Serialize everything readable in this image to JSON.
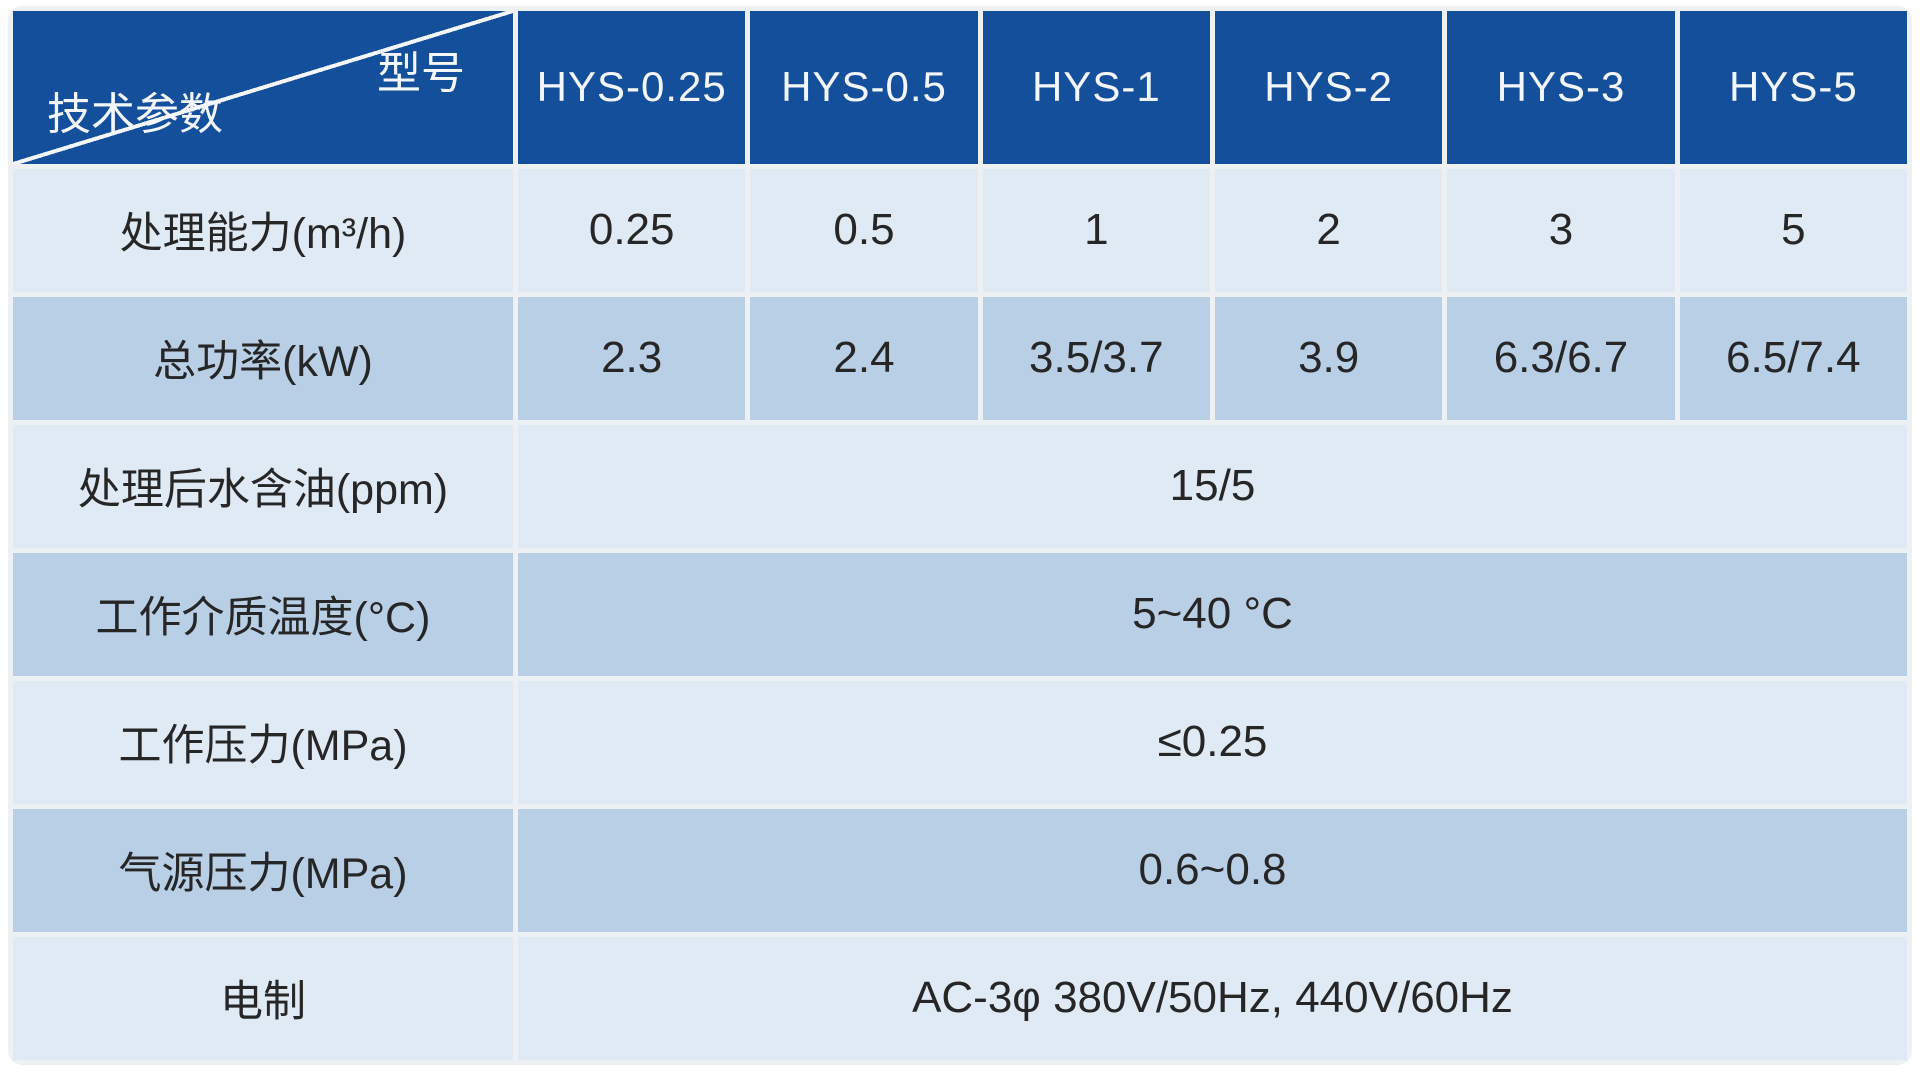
{
  "theme": {
    "header_bg": "#134F9B",
    "header_text": "#F3F7FB",
    "row_light": "#DFEAF5",
    "row_medium": "#B9CFE5",
    "grid": "#EEF1F4",
    "text_dark": "#262626"
  },
  "table": {
    "corner": {
      "top_label": "型号",
      "bottom_label": "技术参数"
    },
    "columns": [
      "HYS-0.25",
      "HYS-0.5",
      "HYS-1",
      "HYS-2",
      "HYS-3",
      "HYS-5"
    ],
    "rows": [
      {
        "label": "处理能力(m³/h)",
        "values": [
          "0.25",
          "0.5",
          "1",
          "2",
          "3",
          "5"
        ]
      },
      {
        "label": "总功率(kW)",
        "values": [
          "2.3",
          "2.4",
          "3.5/3.7",
          "3.9",
          "6.3/6.7",
          "6.5/7.4"
        ]
      },
      {
        "label": "处理后水含油(ppm)",
        "merged": "15/5"
      },
      {
        "label": "工作介质温度(°C)",
        "merged": "5~40 °C"
      },
      {
        "label": "工作压力(MPa)",
        "merged": "≤0.25"
      },
      {
        "label": "气源压力(MPa)",
        "merged": "0.6~0.8"
      },
      {
        "label": "电制",
        "merged": "AC-3φ 380V/50Hz, 440V/60Hz"
      }
    ]
  }
}
